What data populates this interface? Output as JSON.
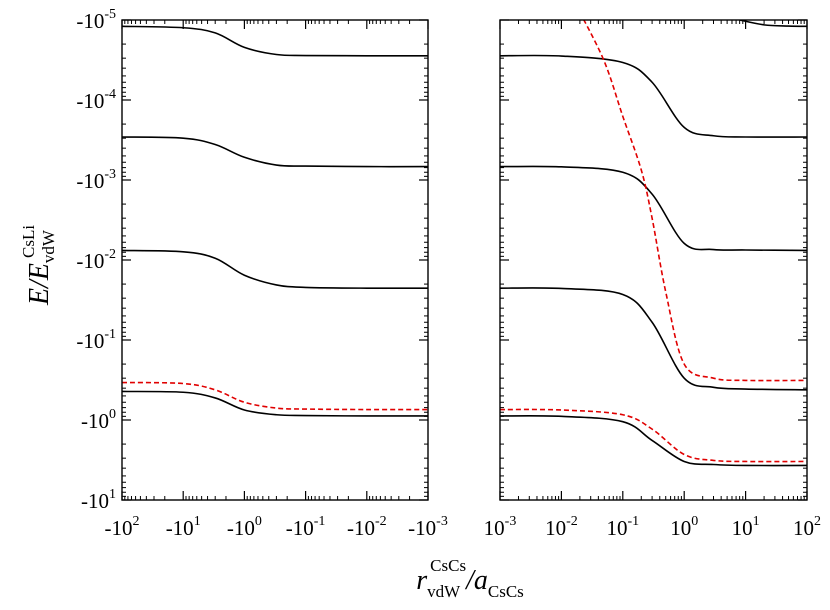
{
  "chart_data": {
    "type": "line",
    "ylabel": {
      "main": "E/E",
      "sub": "vdW",
      "sup": "CsLi"
    },
    "xlabel": {
      "r": "r",
      "r_sub": "vdW",
      "r_sup": "CsCs",
      "slash_a": "/a",
      "a_sub": "CsCs"
    },
    "yscale": "log",
    "yaxis_inverted": true,
    "ylim": [
      1e-05,
      10
    ],
    "yticks": [
      {
        "exp": "-5",
        "mantissa": "-10"
      },
      {
        "exp": "-4",
        "mantissa": "-10"
      },
      {
        "exp": "-3",
        "mantissa": "-10"
      },
      {
        "exp": "-2",
        "mantissa": "-10"
      },
      {
        "exp": "-1",
        "mantissa": "-10"
      },
      {
        "exp": "0",
        "mantissa": "-10"
      },
      {
        "exp": "1",
        "mantissa": "-10"
      }
    ],
    "panels": [
      {
        "name": "left",
        "xscale": "log",
        "xlim": [
          -100,
          -0.001
        ],
        "xticks": [
          {
            "mantissa": "-10",
            "exp": "2"
          },
          {
            "mantissa": "-10",
            "exp": "1"
          },
          {
            "mantissa": "-10",
            "exp": "0"
          },
          {
            "mantissa": "-10",
            "exp": "-1"
          },
          {
            "mantissa": "-10",
            "exp": "-2"
          },
          {
            "mantissa": "-10",
            "exp": "-3"
          }
        ],
        "series": [
          {
            "style": "solid",
            "color": "#000000",
            "x": [
              -100,
              -10,
              -3,
              -1,
              -0.3,
              -0.1,
              -0.01,
              -0.001
            ],
            "y": [
              1.2e-05,
              1.25e-05,
              1.45e-05,
              2.2e-05,
              2.7e-05,
              2.78e-05,
              2.8e-05,
              2.8e-05
            ]
          },
          {
            "style": "solid",
            "color": "#000000",
            "x": [
              -100,
              -10,
              -3,
              -1,
              -0.3,
              -0.1,
              -0.01,
              -0.001
            ],
            "y": [
              0.00029,
              0.0003,
              0.00036,
              0.00052,
              0.00065,
              0.00067,
              0.00068,
              0.00068
            ]
          },
          {
            "style": "solid",
            "color": "#000000",
            "x": [
              -100,
              -10,
              -3,
              -1,
              -0.3,
              -0.1,
              -0.01,
              -0.001
            ],
            "y": [
              0.0076,
              0.0079,
              0.0095,
              0.0155,
              0.0205,
              0.022,
              0.0225,
              0.0225
            ]
          },
          {
            "style": "solid",
            "color": "#000000",
            "x": [
              -100,
              -10,
              -3,
              -1,
              -0.3,
              -0.1,
              -0.01,
              -0.001
            ],
            "y": [
              0.44,
              0.45,
              0.53,
              0.75,
              0.86,
              0.88,
              0.89,
              0.89
            ]
          },
          {
            "style": "dashed",
            "color": "#e00000",
            "x": [
              -100,
              -10,
              -3,
              -1,
              -0.3,
              -0.1,
              -0.01,
              -0.001
            ],
            "y": [
              0.34,
              0.35,
              0.42,
              0.6,
              0.71,
              0.73,
              0.74,
              0.74
            ]
          }
        ]
      },
      {
        "name": "right",
        "xscale": "log",
        "xlim": [
          0.001,
          100
        ],
        "xticks": [
          {
            "mantissa": "10",
            "exp": "-3"
          },
          {
            "mantissa": "10",
            "exp": "-2"
          },
          {
            "mantissa": "10",
            "exp": "-1"
          },
          {
            "mantissa": "10",
            "exp": "0"
          },
          {
            "mantissa": "10",
            "exp": "1"
          },
          {
            "mantissa": "10",
            "exp": "2"
          }
        ],
        "series": [
          {
            "style": "solid",
            "color": "#000000",
            "x": [
              0.001,
              0.01,
              0.1,
              0.3,
              1,
              3,
              10,
              100
            ],
            "y": [
              2.8e-05,
              2.82e-05,
              3.4e-05,
              6e-05,
              0.00022,
              0.00028,
              0.00029,
              0.00029
            ]
          },
          {
            "style": "solid",
            "color": "#000000",
            "x": [
              0.001,
              0.01,
              0.1,
              0.3,
              1,
              3,
              10,
              100
            ],
            "y": [
              0.00068,
              0.000685,
              0.0008,
              0.0015,
              0.0062,
              0.0074,
              0.0075,
              0.0076
            ]
          },
          {
            "style": "solid",
            "color": "#000000",
            "x": [
              0.001,
              0.01,
              0.1,
              0.3,
              1,
              3,
              10,
              100
            ],
            "y": [
              0.0225,
              0.0227,
              0.027,
              0.06,
              0.3,
              0.39,
              0.41,
              0.42
            ]
          },
          {
            "style": "solid",
            "color": "#000000",
            "x": [
              0.001,
              0.01,
              0.1,
              0.3,
              1,
              3,
              10,
              100
            ],
            "y": [
              0.89,
              0.9,
              1.05,
              1.8,
              3.3,
              3.6,
              3.7,
              3.7
            ]
          },
          {
            "style": "dashed",
            "color": "#e00000",
            "x": [
              0.02,
              0.05,
              0.1,
              0.2,
              0.3,
              0.5,
              1,
              3,
              10,
              100
            ],
            "y": [
              8e-06,
              3.3e-05,
              0.00016,
              0.00075,
              0.003,
              0.025,
              0.2,
              0.3,
              0.32,
              0.32
            ]
          },
          {
            "style": "dashed",
            "color": "#e00000",
            "x": [
              0.001,
              0.01,
              0.1,
              0.3,
              1,
              3,
              10,
              100
            ],
            "y": [
              0.74,
              0.75,
              0.86,
              1.3,
              2.7,
              3.2,
              3.3,
              3.3
            ]
          },
          {
            "style": "solid",
            "color": "#000000",
            "x": [
              8,
              20,
              50,
              100
            ],
            "y": [
              1e-05,
              1.15e-05,
              1.19e-05,
              1.2e-05
            ]
          }
        ]
      }
    ]
  }
}
